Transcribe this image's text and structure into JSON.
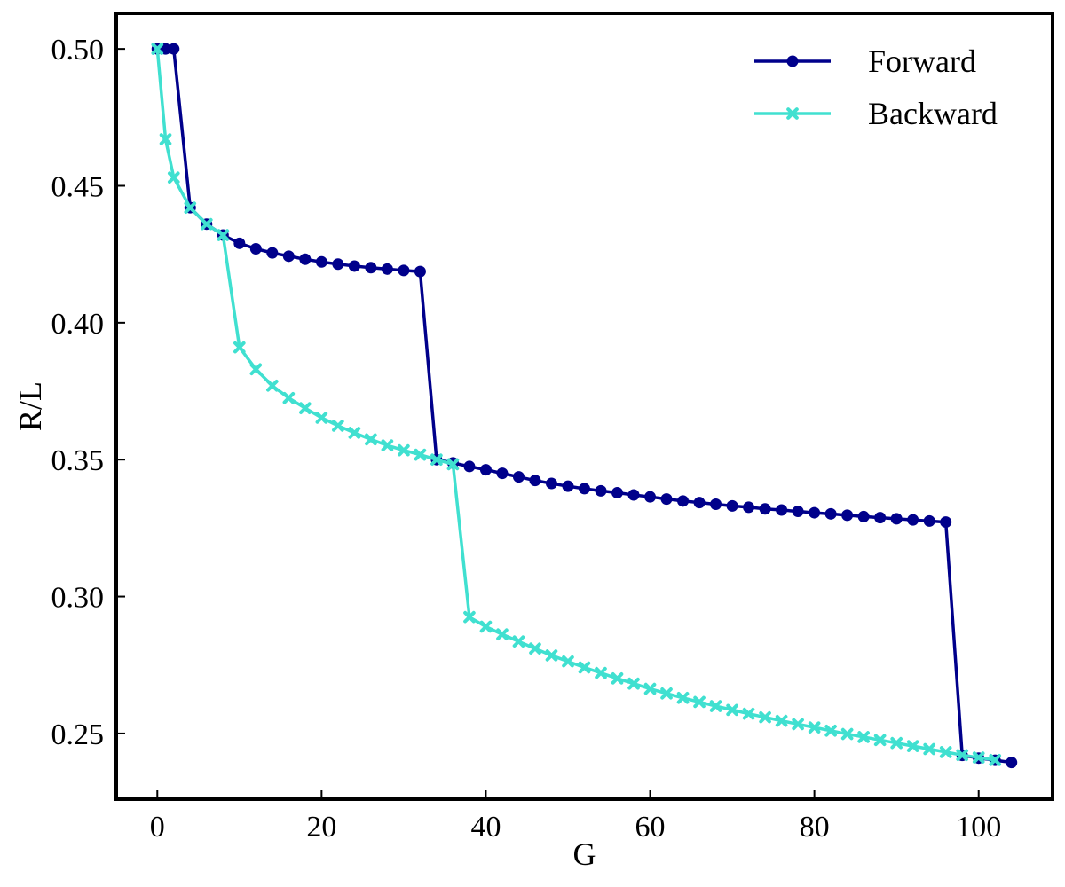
{
  "chart_data": {
    "type": "line",
    "title": "",
    "xlabel": "G",
    "ylabel": "R/L",
    "xlim": [
      -5,
      109
    ],
    "ylim": [
      0.226,
      0.513
    ],
    "xticks": [
      0,
      20,
      40,
      60,
      80,
      100
    ],
    "xtick_labels": [
      "0",
      "20",
      "40",
      "60",
      "80",
      "100"
    ],
    "yticks": [
      0.25,
      0.3,
      0.35,
      0.4,
      0.45,
      0.5
    ],
    "ytick_labels": [
      "0.25",
      "0.30",
      "0.35",
      "0.40",
      "0.45",
      "0.50"
    ],
    "grid": false,
    "legend": "top-right",
    "series": [
      {
        "name": "Forward",
        "color": "#00008b",
        "marker": "circle",
        "x": [
          0,
          1,
          2,
          4,
          6,
          8,
          10,
          12,
          14,
          16,
          18,
          20,
          22,
          24,
          26,
          28,
          30,
          32,
          34,
          36,
          38,
          40,
          42,
          44,
          46,
          48,
          50,
          52,
          54,
          56,
          58,
          60,
          62,
          64,
          66,
          68,
          70,
          72,
          74,
          76,
          78,
          80,
          82,
          84,
          86,
          88,
          90,
          92,
          94,
          96,
          98,
          100,
          102,
          104
        ],
        "y": [
          0.5,
          0.5,
          0.5,
          0.442,
          0.436,
          0.432,
          0.429,
          0.427,
          0.4255,
          0.4243,
          0.4232,
          0.4222,
          0.4214,
          0.4207,
          0.4201,
          0.4196,
          0.4191,
          0.4187,
          0.35,
          0.3488,
          0.3475,
          0.3463,
          0.345,
          0.3437,
          0.3424,
          0.3413,
          0.3403,
          0.3394,
          0.3386,
          0.3379,
          0.3371,
          0.3364,
          0.3356,
          0.3349,
          0.3343,
          0.3337,
          0.3331,
          0.3326,
          0.332,
          0.3316,
          0.3311,
          0.3306,
          0.3302,
          0.3297,
          0.3292,
          0.3288,
          0.3284,
          0.328,
          0.3276,
          0.3272,
          0.242,
          0.241,
          0.2402,
          0.2394
        ]
      },
      {
        "name": "Backward",
        "color": "#40e0d0",
        "marker": "x",
        "x": [
          0,
          1,
          2,
          4,
          6,
          8,
          10,
          12,
          14,
          16,
          18,
          20,
          22,
          24,
          26,
          28,
          30,
          32,
          34,
          36,
          38,
          40,
          42,
          44,
          46,
          48,
          50,
          52,
          54,
          56,
          58,
          60,
          62,
          64,
          66,
          68,
          70,
          72,
          74,
          76,
          78,
          80,
          82,
          84,
          86,
          88,
          90,
          92,
          94,
          96,
          98,
          100,
          102
        ],
        "y": [
          0.5,
          0.467,
          0.453,
          0.442,
          0.436,
          0.432,
          0.391,
          0.383,
          0.377,
          0.3725,
          0.3688,
          0.3653,
          0.3624,
          0.3598,
          0.3574,
          0.3552,
          0.3534,
          0.3518,
          0.35,
          0.3483,
          0.2925,
          0.289,
          0.2862,
          0.2836,
          0.281,
          0.2785,
          0.2763,
          0.2741,
          0.2721,
          0.2701,
          0.2682,
          0.2663,
          0.2646,
          0.263,
          0.2615,
          0.26,
          0.2586,
          0.2572,
          0.2559,
          0.2546,
          0.2534,
          0.2522,
          0.251,
          0.2498,
          0.2487,
          0.2476,
          0.2465,
          0.2454,
          0.2443,
          0.2432,
          0.2421,
          0.2412,
          0.2403
        ]
      }
    ]
  }
}
